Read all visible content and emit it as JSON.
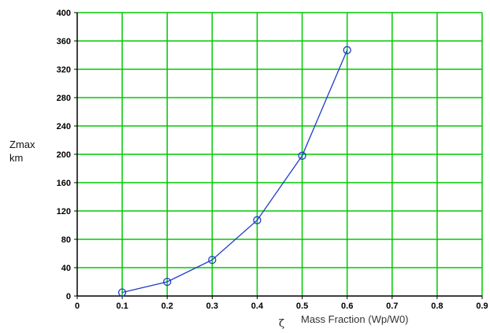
{
  "chart_data": {
    "type": "line",
    "x": [
      0.1,
      0.2,
      0.3,
      0.4,
      0.5,
      0.6
    ],
    "series": [
      {
        "values": [
          5,
          20,
          51,
          107,
          198,
          347
        ],
        "color": "#1e3cc8"
      }
    ],
    "xlim": [
      0,
      0.9
    ],
    "ylim": [
      0,
      400
    ],
    "x_ticks": [
      "0",
      "0.1",
      "0.2",
      "0.3",
      "0.4",
      "0.5",
      "0.6",
      "0.7",
      "0.8",
      "0.9"
    ],
    "y_ticks": [
      "0",
      "40",
      "80",
      "120",
      "160",
      "200",
      "240",
      "280",
      "320",
      "360",
      "400"
    ],
    "ylabel_line1": "Zmax",
    "ylabel_line2": "km",
    "xlabel": "Mass Fraction (Wp/W0)",
    "xlabel_symbol": "ζ",
    "grid": true,
    "grid_color": "#00c800",
    "marker": "circle"
  }
}
